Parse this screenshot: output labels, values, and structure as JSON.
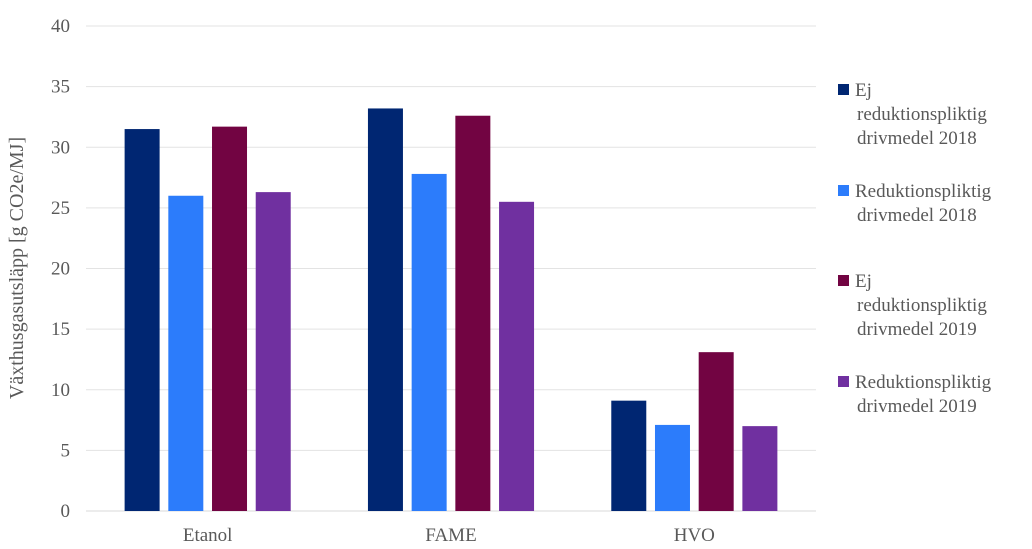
{
  "chart_data": {
    "type": "bar",
    "title": "",
    "xlabel": "",
    "ylabel": "Växthusgasutsläpp [g CO2e/MJ]",
    "ylim": [
      0,
      40
    ],
    "ytick_step": 5,
    "grid": true,
    "legend_position": "right",
    "categories": [
      "Etanol",
      "FAME",
      "HVO"
    ],
    "series": [
      {
        "name": "Ej reduktionspliktig drivmedel 2018",
        "legend_lines": [
          "Ej",
          "reduktionspliktig",
          "drivmedel 2018"
        ],
        "color": "#002672",
        "values": [
          31.5,
          33.2,
          9.1
        ]
      },
      {
        "name": "Reduktionspliktig drivmedel 2018",
        "legend_lines": [
          "Reduktionspliktig",
          "drivmedel 2018"
        ],
        "color": "#2c7cfb",
        "values": [
          26.0,
          27.8,
          7.1
        ]
      },
      {
        "name": "Ej reduktionspliktig drivmedel 2019",
        "legend_lines": [
          "Ej",
          "reduktionspliktig",
          "drivmedel 2019"
        ],
        "color": "#720442",
        "values": [
          31.7,
          32.6,
          13.1
        ]
      },
      {
        "name": "Reduktionspliktig drivmedel 2019",
        "legend_lines": [
          "Reduktionspliktig",
          "drivmedel 2019"
        ],
        "color": "#7030a0",
        "values": [
          26.3,
          25.5,
          7.0
        ]
      }
    ]
  }
}
